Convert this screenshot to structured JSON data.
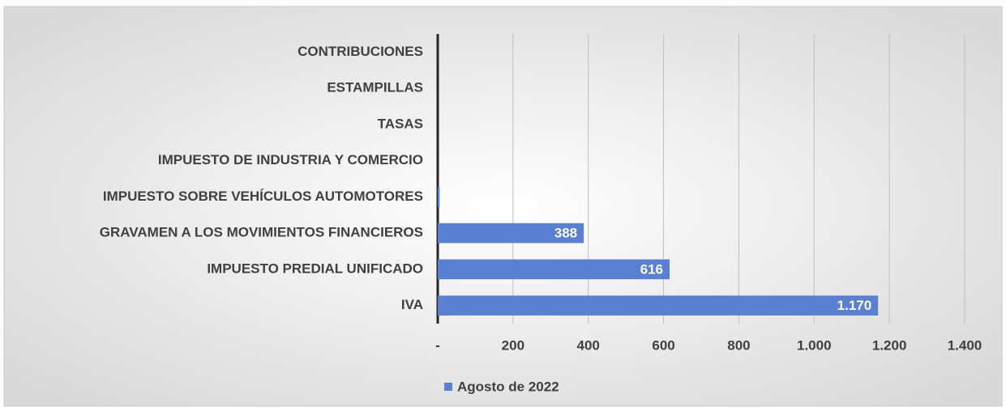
{
  "chart_data": {
    "type": "hbar",
    "categories": [
      "CONTRIBUCIONES",
      "ESTAMPILLAS",
      "TASAS",
      "IMPUESTO DE INDUSTRIA Y COMERCIO",
      "IMPUESTO SOBRE VEHÍCULOS AUTOMOTORES",
      "GRAVAMEN A LOS MOVIMIENTOS FINANCIEROS",
      "IMPUESTO PREDIAL UNIFICADO",
      "IVA"
    ],
    "series": [
      {
        "name": "Agosto de 2022",
        "color": "#5b80d2",
        "values": [
          0,
          0,
          0,
          0,
          5,
          388,
          616,
          1170
        ],
        "value_labels": [
          null,
          null,
          null,
          null,
          null,
          "388",
          "616",
          "1.170"
        ]
      }
    ],
    "xlim": [
      0,
      1400
    ],
    "xticks": [
      {
        "value": 0,
        "label": "-"
      },
      200,
      400,
      600,
      800,
      {
        "value": 1000,
        "label": "1.000"
      },
      {
        "value": 1200,
        "label": "1.200"
      },
      {
        "value": 1400,
        "label": "1.400"
      }
    ],
    "grid": true,
    "legend": "bottom"
  }
}
